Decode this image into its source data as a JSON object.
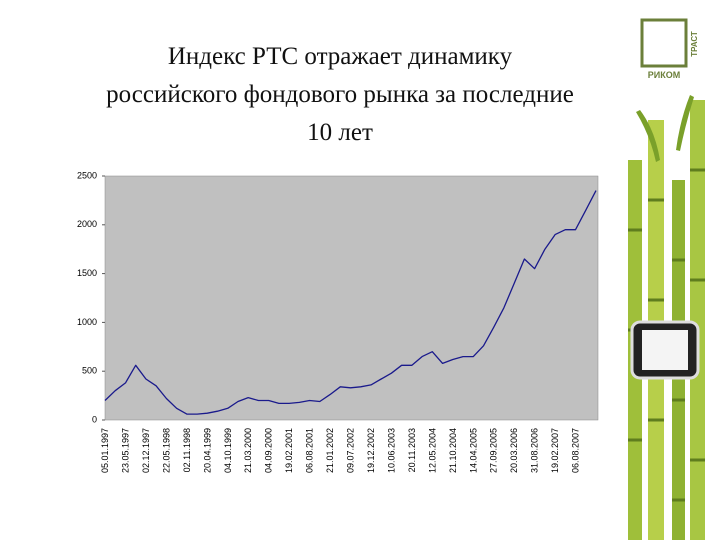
{
  "logo": {
    "top": "РИКОМ",
    "side": "ТРАСТ"
  },
  "chart_data": {
    "type": "line",
    "title": "Индекс РТС отражает динамику российского фондового рынка за последние 10 лет",
    "categories": [
      "05.01.1997",
      null,
      "23.05.1997",
      null,
      "02.12.1997",
      null,
      "22.05.1998",
      null,
      "02.11.1998",
      null,
      "20.04.1999",
      null,
      "04.10.1999",
      null,
      "21.03.2000",
      null,
      "04.09.2000",
      null,
      "19.02.2001",
      null,
      "06.08.2001",
      null,
      "21.01.2002",
      null,
      "09.07.2002",
      null,
      "19.12.2002",
      null,
      "10.06.2003",
      null,
      "20.11.2003",
      null,
      "12.05.2004",
      null,
      "21.10.2004",
      null,
      "14.04.2005",
      null,
      "27.09.2005",
      null,
      "20.03.2006",
      null,
      "31.08.2006",
      null,
      "19.02.2007",
      null,
      "06.08.2007",
      null,
      null
    ],
    "values": [
      200,
      300,
      380,
      560,
      420,
      350,
      220,
      120,
      60,
      60,
      70,
      90,
      120,
      190,
      230,
      200,
      200,
      170,
      170,
      180,
      200,
      190,
      260,
      340,
      330,
      340,
      360,
      420,
      480,
      560,
      560,
      650,
      700,
      580,
      620,
      650,
      650,
      760,
      950,
      1150,
      1400,
      1650,
      1550,
      1750,
      1900,
      1950,
      1950,
      2150,
      2350
    ],
    "color": "#1a1a8c",
    "plot_background": "#c0c0c0",
    "ylim": [
      0,
      2500
    ],
    "yticks": [
      0,
      500,
      1000,
      1500,
      2000,
      2500
    ],
    "grid": false
  }
}
